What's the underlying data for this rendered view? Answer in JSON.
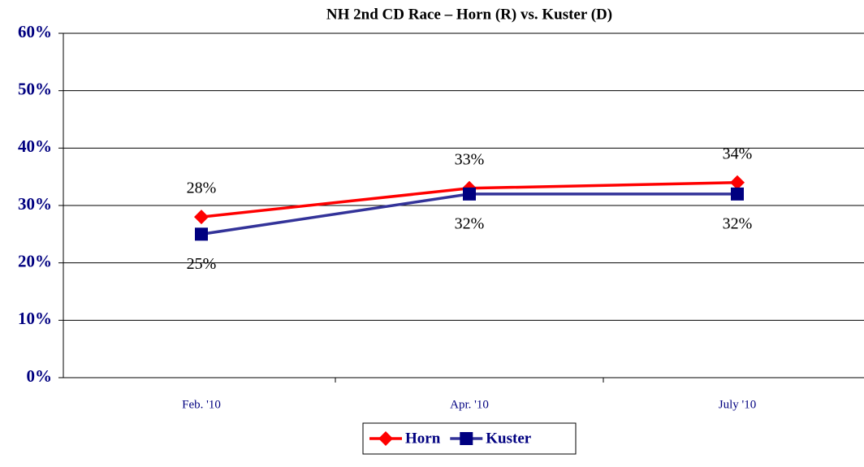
{
  "chart_data": {
    "type": "line",
    "title": "NH 2nd CD Race – Horn (R) vs. Kuster (D)",
    "categories": [
      "Feb. '10",
      "Apr. '10",
      "July '10"
    ],
    "series": [
      {
        "name": "Horn",
        "color": "#ff0000",
        "marker": "diamond",
        "values": [
          28,
          33,
          34
        ],
        "value_labels": [
          "28%",
          "33%",
          "34%"
        ]
      },
      {
        "name": "Kuster",
        "color": "#000080",
        "line_color": "#333399",
        "marker": "square",
        "values": [
          25,
          32,
          32
        ],
        "value_labels": [
          "25%",
          "32%",
          "32%"
        ]
      }
    ],
    "ylim": [
      0,
      60
    ],
    "yticks": [
      {
        "value": 0,
        "label": "0%"
      },
      {
        "value": 10,
        "label": "10%"
      },
      {
        "value": 20,
        "label": "20%"
      },
      {
        "value": 30,
        "label": "30%"
      },
      {
        "value": 40,
        "label": "40%"
      },
      {
        "value": 50,
        "label": "50%"
      },
      {
        "value": 60,
        "label": "60%"
      }
    ],
    "grid": true,
    "legend": "bottom"
  }
}
